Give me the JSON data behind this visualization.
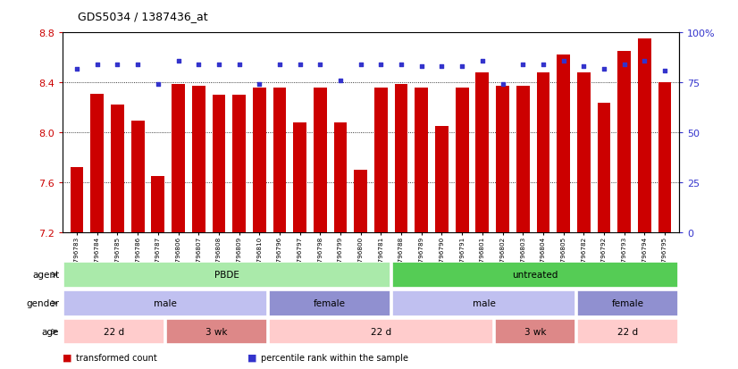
{
  "title": "GDS5034 / 1387436_at",
  "samples": [
    "GSM796783",
    "GSM796784",
    "GSM796785",
    "GSM796786",
    "GSM796787",
    "GSM796806",
    "GSM796807",
    "GSM796808",
    "GSM796809",
    "GSM796810",
    "GSM796796",
    "GSM796797",
    "GSM796798",
    "GSM796799",
    "GSM796800",
    "GSM796781",
    "GSM796788",
    "GSM796789",
    "GSM796790",
    "GSM796791",
    "GSM796801",
    "GSM796802",
    "GSM796803",
    "GSM796804",
    "GSM796805",
    "GSM796782",
    "GSM796792",
    "GSM796793",
    "GSM796794",
    "GSM796795"
  ],
  "bar_values": [
    7.72,
    8.31,
    8.22,
    8.09,
    7.65,
    8.39,
    8.37,
    8.3,
    8.3,
    8.36,
    8.36,
    8.08,
    8.36,
    8.08,
    7.7,
    8.36,
    8.39,
    8.36,
    8.05,
    8.36,
    8.48,
    8.37,
    8.37,
    8.48,
    8.62,
    8.48,
    8.24,
    8.65,
    8.75,
    8.4
  ],
  "percentile_values": [
    82,
    84,
    84,
    84,
    74,
    86,
    84,
    84,
    84,
    74,
    84,
    84,
    84,
    76,
    84,
    84,
    84,
    83,
    83,
    83,
    86,
    74,
    84,
    84,
    86,
    83,
    82,
    84,
    86,
    81
  ],
  "ylim": [
    7.2,
    8.8
  ],
  "yticks": [
    7.2,
    7.6,
    8.0,
    8.4,
    8.8
  ],
  "right_yticks": [
    0,
    25,
    50,
    75,
    100
  ],
  "right_ylim": [
    0,
    100
  ],
  "bar_color": "#cc0000",
  "dot_color": "#3333cc",
  "agent_groups": [
    {
      "label": "PBDE",
      "start": 0,
      "end": 16,
      "color": "#aaeaaa"
    },
    {
      "label": "untreated",
      "start": 16,
      "end": 30,
      "color": "#55cc55"
    }
  ],
  "gender_groups": [
    {
      "label": "male",
      "start": 0,
      "end": 10,
      "color": "#c0c0f0"
    },
    {
      "label": "female",
      "start": 10,
      "end": 16,
      "color": "#9090d0"
    },
    {
      "label": "male",
      "start": 16,
      "end": 25,
      "color": "#c0c0f0"
    },
    {
      "label": "female",
      "start": 25,
      "end": 30,
      "color": "#9090d0"
    }
  ],
  "age_groups": [
    {
      "label": "22 d",
      "start": 0,
      "end": 5,
      "color": "#ffcccc"
    },
    {
      "label": "3 wk",
      "start": 5,
      "end": 10,
      "color": "#dd8888"
    },
    {
      "label": "22 d",
      "start": 10,
      "end": 21,
      "color": "#ffcccc"
    },
    {
      "label": "3 wk",
      "start": 21,
      "end": 25,
      "color": "#dd8888"
    },
    {
      "label": "22 d",
      "start": 25,
      "end": 30,
      "color": "#ffcccc"
    }
  ],
  "panel_labels": [
    "agent",
    "gender",
    "age"
  ],
  "legend_items": [
    {
      "label": "transformed count",
      "color": "#cc0000"
    },
    {
      "label": "percentile rank within the sample",
      "color": "#3333cc"
    }
  ],
  "fig_width": 8.26,
  "fig_height": 4.14,
  "dpi": 100
}
